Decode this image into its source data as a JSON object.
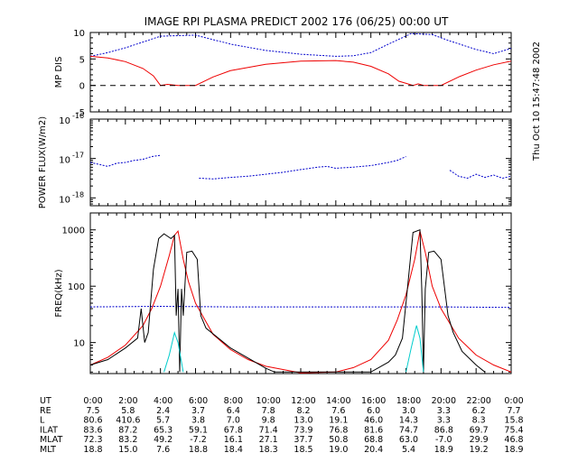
{
  "figure": {
    "title": "IMAGE  RPI PLASMA PREDICT 2002 176 (06/25) 00:00 UT",
    "side_timestamp": "Thu Oct 10 15:47:48 2002"
  },
  "chart_data": [
    {
      "type": "line",
      "panel": "mp_distance",
      "ylabel": "MP DIS",
      "ylim": [
        -5,
        10
      ],
      "yticks": [
        "10",
        "5",
        "0",
        "-5"
      ],
      "xlim": [
        0,
        24
      ],
      "colors": {
        "blue": "#0000cc",
        "red": "#ee0000",
        "black": "#000000"
      },
      "series": [
        {
          "key": "blue_dotted",
          "color": "#0000cc",
          "style": "dotted",
          "x": [
            0,
            1,
            2,
            3,
            4,
            6,
            8,
            10,
            12,
            14,
            15,
            16,
            17,
            18.3,
            19.5,
            20.5,
            22,
            23,
            24
          ],
          "y": [
            5.5,
            6.2,
            7.1,
            8.2,
            9.3,
            9.5,
            7.8,
            6.6,
            5.9,
            5.5,
            5.6,
            6.2,
            7.8,
            9.8,
            9.6,
            8.4,
            6.8,
            6.0,
            7.0
          ]
        },
        {
          "key": "red_solid",
          "color": "#ee0000",
          "style": "solid",
          "x": [
            0,
            1,
            2,
            3,
            3.6,
            4,
            4.4,
            4.7,
            5,
            5.3,
            6,
            7,
            8,
            10,
            12,
            14,
            15,
            16,
            17,
            17.6,
            18.1,
            18.4,
            18.7,
            19,
            19.4,
            20,
            21,
            22,
            23,
            24
          ],
          "y": [
            5.5,
            5.2,
            4.5,
            3.2,
            1.8,
            0,
            0.2,
            0.1,
            0,
            0,
            0,
            1.6,
            2.8,
            4.0,
            4.6,
            4.7,
            4.4,
            3.6,
            2.2,
            0.8,
            0.3,
            0,
            0.3,
            0,
            0,
            0,
            1.6,
            2.9,
            3.9,
            4.6
          ]
        },
        {
          "key": "zero_line",
          "color": "#000000",
          "style": "dashed",
          "x": [
            0,
            24
          ],
          "y": [
            0,
            0
          ]
        }
      ]
    },
    {
      "type": "line",
      "panel": "power_flux",
      "ylabel": "POWER FLUX(W/m2)",
      "log_scale": true,
      "ylim_log10": [
        -18.2,
        -16
      ],
      "yticks": [
        {
          "base": "10",
          "exp": "-16",
          "v": -16
        },
        {
          "base": "10",
          "exp": "-17",
          "v": -17
        },
        {
          "base": "10",
          "exp": "-18",
          "v": -18
        }
      ],
      "xlim": [
        0,
        24
      ],
      "series": [
        {
          "key": "blue_flux",
          "color": "#0000cc",
          "style": "dotted",
          "segments": [
            {
              "x": [
                0,
                0.5,
                1,
                1.5,
                2,
                2.5,
                3,
                3.5,
                4
              ],
              "y": [
                -17.1,
                -17.15,
                -17.2,
                -17.12,
                -17.1,
                -17.05,
                -17.02,
                -16.95,
                -16.92
              ]
            },
            {
              "x": [
                6.2,
                7,
                8,
                9,
                10,
                11,
                12,
                13,
                13.5,
                14,
                15,
                16,
                17,
                17.5,
                18
              ],
              "y": [
                -17.5,
                -17.52,
                -17.48,
                -17.45,
                -17.4,
                -17.35,
                -17.28,
                -17.22,
                -17.2,
                -17.25,
                -17.22,
                -17.18,
                -17.1,
                -17.05,
                -16.95
              ]
            },
            {
              "x": [
                20.5,
                21,
                21.5,
                22,
                22.5,
                23,
                23.5,
                24
              ],
              "y": [
                -17.3,
                -17.45,
                -17.5,
                -17.4,
                -17.48,
                -17.42,
                -17.5,
                -17.45
              ]
            }
          ]
        }
      ]
    },
    {
      "type": "line",
      "panel": "frequency",
      "ylabel": "FREQ(kHz)",
      "log_scale": true,
      "ylim_log10": [
        0.45,
        3.3
      ],
      "yticks": [
        {
          "label": "1000",
          "v": 3
        },
        {
          "label": "100",
          "v": 2
        },
        {
          "label": "10",
          "v": 1
        }
      ],
      "xlim": [
        0,
        24
      ],
      "series": [
        {
          "key": "blue_dashed",
          "color": "#0000cc",
          "style": "dotted",
          "x": [
            0,
            4,
            8,
            12,
            16,
            20,
            24
          ],
          "y": [
            43,
            44,
            43,
            43,
            43,
            43,
            42
          ]
        },
        {
          "key": "red_solid",
          "color": "#ee0000",
          "style": "solid",
          "x": [
            0,
            1,
            2,
            3,
            3.5,
            4,
            4.5,
            4.8,
            5,
            5.3,
            5.6,
            6,
            7,
            8,
            9,
            10,
            12,
            14,
            15,
            16,
            17,
            17.5,
            18,
            18.5,
            18.8,
            19.1,
            19.5,
            20,
            21,
            22,
            23,
            24
          ],
          "y": [
            4,
            5.5,
            9,
            20,
            40,
            100,
            350,
            800,
            950,
            300,
            120,
            50,
            14,
            7.5,
            5,
            3.8,
            2.9,
            3,
            3.6,
            5,
            11,
            25,
            70,
            300,
            950,
            400,
            100,
            40,
            12,
            6,
            4,
            3
          ]
        },
        {
          "key": "black_solid",
          "color": "#000000",
          "style": "solid",
          "x": [
            0,
            1,
            2,
            2.7,
            2.9,
            3.1,
            3.3,
            3.6,
            3.9,
            4.2,
            4.6,
            4.8,
            4.9,
            5.0,
            5.1,
            5.2,
            5.3,
            5.5,
            5.8,
            6.1,
            6.3,
            6.6,
            8,
            10,
            10.5,
            16,
            17,
            17.4,
            17.8,
            18.1,
            18.4,
            18.8,
            18.9,
            19.0,
            19.1,
            19.3,
            19.6,
            20,
            20.4,
            20.7,
            21.2,
            22,
            22.5
          ],
          "y": [
            4,
            5,
            8,
            12,
            40,
            10,
            15,
            200,
            700,
            850,
            700,
            800,
            30,
            90,
            3,
            90,
            30,
            400,
            420,
            300,
            30,
            18,
            8,
            3.5,
            3,
            3,
            4.5,
            6,
            12,
            100,
            900,
            1000,
            90,
            3,
            90,
            400,
            420,
            300,
            30,
            15,
            7,
            4,
            3
          ]
        },
        {
          "key": "cyan_solid",
          "color": "#00cccc",
          "style": "solid",
          "segments": [
            {
              "x": [
                4.2,
                4.5,
                4.8,
                5.0,
                5.3
              ],
              "y": [
                3,
                6,
                15,
                10,
                3
              ]
            },
            {
              "x": [
                18.0,
                18.3,
                18.6,
                18.8,
                19.0
              ],
              "y": [
                3,
                8,
                20,
                12,
                3
              ]
            }
          ]
        }
      ]
    }
  ],
  "x_axis": {
    "ticks": [
      "0:00",
      "2:00",
      "4:00",
      "6:00",
      "8:00",
      "10:00",
      "12:00",
      "14:00",
      "16:00",
      "18:00",
      "20:00",
      "22:00",
      "0:00"
    ]
  },
  "table": {
    "rows": [
      {
        "label": "UT",
        "values": [
          "0:00",
          "2:00",
          "4:00",
          "6:00",
          "8:00",
          "10:00",
          "12:00",
          "14:00",
          "16:00",
          "18:00",
          "20:00",
          "22:00",
          "0:00"
        ]
      },
      {
        "label": "RE",
        "values": [
          "7.5",
          "5.8",
          "2.4",
          "3.7",
          "6.4",
          "7.8",
          "8.2",
          "7.6",
          "6.0",
          "3.0",
          "3.3",
          "6.2",
          "7.7"
        ]
      },
      {
        "label": "L",
        "values": [
          "80.6",
          "410.6",
          "5.7",
          "3.8",
          "7.0",
          "9.8",
          "13.0",
          "19.1",
          "46.0",
          "14.3",
          "3.3",
          "8.3",
          "15.8"
        ]
      },
      {
        "label": "ILAT",
        "values": [
          "83.6",
          "87.2",
          "65.3",
          "59.1",
          "67.8",
          "71.4",
          "73.9",
          "76.8",
          "81.6",
          "74.7",
          "86.8",
          "69.7",
          "75.4"
        ]
      },
      {
        "label": "MLAT",
        "values": [
          "72.3",
          "83.2",
          "49.2",
          "-7.2",
          "16.1",
          "27.1",
          "37.7",
          "50.8",
          "68.8",
          "63.0",
          "-7.0",
          "29.9",
          "46.8"
        ]
      },
      {
        "label": "MLT",
        "values": [
          "18.8",
          "15.0",
          "7.6",
          "18.8",
          "18.4",
          "18.3",
          "18.5",
          "19.0",
          "20.4",
          "5.4",
          "18.9",
          "19.2",
          "18.9"
        ]
      }
    ]
  }
}
